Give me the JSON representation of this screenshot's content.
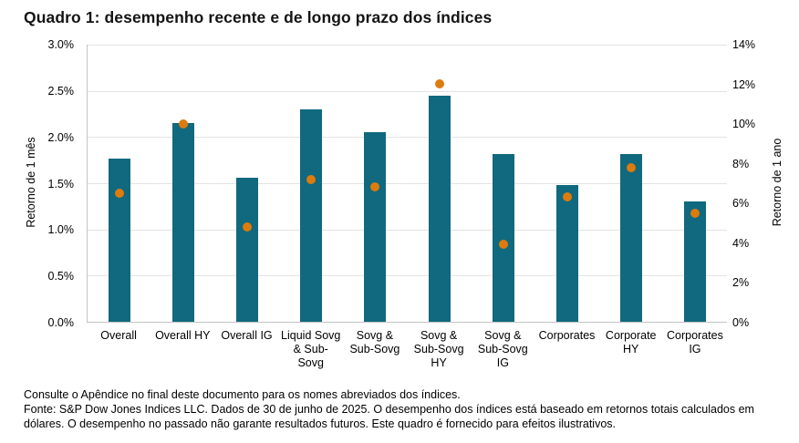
{
  "title": "Quadro 1: desempenho recente e de longo prazo dos índices",
  "chart_data": {
    "type": "bar",
    "subtype": "combo-bar-with-point-markers",
    "title": "Quadro 1: desempenho recente e de longo prazo dos índices",
    "categories": [
      "Overall",
      "Overall HY",
      "Overall IG",
      "Liquid Sovg & Sub-Sovg",
      "Sovg & Sub-Sovg",
      "Sovg & Sub-Sovg HY",
      "Sovg & Sub-Sovg IG",
      "Corporates",
      "Corporate HY",
      "Corporates IG"
    ],
    "category_label_lines": [
      [
        "Overall"
      ],
      [
        "Overall HY"
      ],
      [
        "Overall IG"
      ],
      [
        "Liquid Sovg",
        "& Sub-",
        "Sovg"
      ],
      [
        "Sovg &",
        "Sub-Sovg"
      ],
      [
        "Sovg &",
        "Sub-Sovg",
        "HY"
      ],
      [
        "Sovg &",
        "Sub-Sovg",
        "IG"
      ],
      [
        "Corporates"
      ],
      [
        "Corporate",
        "HY"
      ],
      [
        "Corporates",
        "IG"
      ]
    ],
    "series": [
      {
        "name": "Retorno de 1 mês",
        "mark": "bar",
        "axis": "left",
        "unit": "%",
        "values": [
          1.77,
          2.15,
          1.56,
          2.3,
          2.05,
          2.45,
          1.82,
          1.48,
          1.82,
          1.3
        ]
      },
      {
        "name": "Retorno de 1 ano",
        "mark": "point",
        "axis": "right",
        "unit": "%",
        "values": [
          6.5,
          10.0,
          4.8,
          7.2,
          6.8,
          12.0,
          3.9,
          6.3,
          7.8,
          5.5
        ]
      }
    ],
    "left_axis": {
      "label": "Retorno de 1 mês",
      "min": 0,
      "max": 3,
      "ticks": [
        "3.0%",
        "2.5%",
        "2.0%",
        "1.5%",
        "1.0%",
        "0.5%",
        "0.0%"
      ]
    },
    "right_axis": {
      "label": "Retorno de 1 ano",
      "min": 0,
      "max": 14,
      "ticks": [
        "14%",
        "12%",
        "10%",
        "8%",
        "6%",
        "4%",
        "2%",
        "0%"
      ]
    },
    "grid": true,
    "legend": false
  },
  "footer": {
    "line1": "Consulte o Apêndice no final deste documento para os nomes abreviados dos índices.",
    "line2": "Fonte: S&P Dow Jones Indices LLC. Dados de 30 de junho de 2025. O desempenho dos índices está baseado em retornos totais calculados em dólares. O desempenho no passado não garante resultados futuros. Este quadro é fornecido para efeitos ilustrativos."
  },
  "colors": {
    "bar": "#10697e",
    "dot": "#dd7b0e",
    "grid": "#e3e3e3",
    "axis_line": "#c3c3c3",
    "text": "#000000"
  }
}
